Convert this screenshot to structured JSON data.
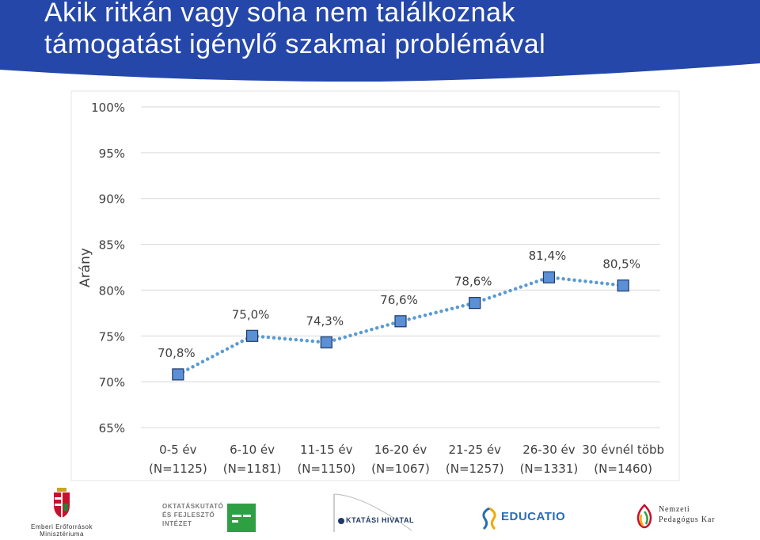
{
  "header": {
    "title_line1": "Akik ritkán vagy soha nem találkoznak",
    "title_line2": "támogatást igénylő szakmai problémával",
    "band_color": "#2547a9"
  },
  "chart_data": {
    "type": "line",
    "title": "",
    "ylabel": "Arány",
    "xlabel": "",
    "ylim": [
      65,
      100
    ],
    "yticks": [
      65,
      70,
      75,
      80,
      85,
      90,
      95,
      100
    ],
    "ytick_labels": [
      "65%",
      "70%",
      "75%",
      "80%",
      "85%",
      "90%",
      "95%",
      "100%"
    ],
    "grid": true,
    "categories": [
      "0-5 év",
      "6-10 év",
      "11-15 év",
      "16-20 év",
      "21-25 év",
      "26-30 év",
      "30 évnél több"
    ],
    "category_n": [
      "(N=1125)",
      "(N=1181)",
      "(N=1150)",
      "(N=1067)",
      "(N=1257)",
      "(N=1331)",
      "(N=1460)"
    ],
    "values": [
      70.8,
      75.0,
      74.3,
      76.6,
      78.6,
      81.4,
      80.5
    ],
    "value_labels": [
      "70,8%",
      "75,0%",
      "74,3%",
      "76,6%",
      "78,6%",
      "81,4%",
      "80,5%"
    ],
    "line_style": "dotted",
    "marker": "square",
    "colors": {
      "line": "#5b9bd5",
      "marker_fill": "#5b8fd6",
      "marker_edge": "#1f3a66",
      "grid": "#d9d9d9"
    }
  },
  "footer": {
    "logos": [
      {
        "icon": "hungarian-coat-of-arms-icon",
        "line1": "Emberi Erőforrások",
        "line2": "Minisztériuma"
      },
      {
        "icon": "ofi-logo-icon",
        "line1": "OKTATÁSKUTATÓ",
        "line2": "ÉS FEJLESZTŐ",
        "line3": "INTÉZET"
      },
      {
        "icon": "oktatasi-hivatal-logo-icon",
        "text": "KTATÁSI HIVATAL"
      },
      {
        "icon": "educatio-logo-icon",
        "text": "EDUCATIO"
      },
      {
        "icon": "npk-logo-icon",
        "line1": "Nemzeti",
        "line2": "Pedagógus Kar"
      }
    ]
  }
}
